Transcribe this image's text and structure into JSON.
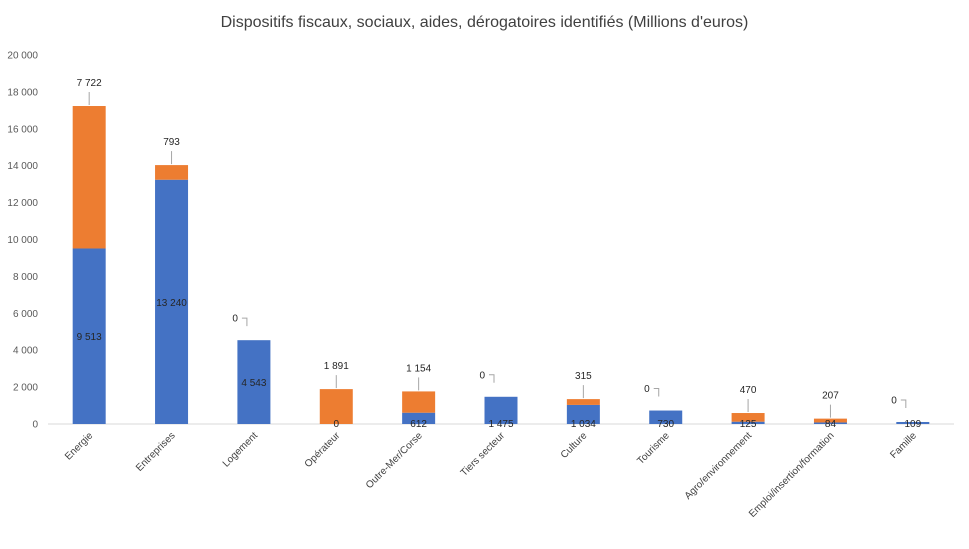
{
  "chart_data": {
    "type": "bar",
    "stacked": true,
    "title": "Dispositifs fiscaux, sociaux, aides, dérogatoires identifiés (Millions d'euros)",
    "categories": [
      "Energie",
      "Entreprises",
      "Logement",
      "Opérateur",
      "Outre-Mer/Corse",
      "Tiers secteur",
      "Culture",
      "Tourisme",
      "Agro/environnement",
      "Emploi/insertion/formation",
      "Famille"
    ],
    "series": [
      {
        "values": [
          9513,
          13240,
          4543,
          0,
          612,
          1475,
          1034,
          730,
          125,
          84,
          109
        ],
        "labels": [
          "9 513",
          "13 240",
          "4 543",
          "0",
          "612",
          "1 475",
          "1 034",
          "730",
          "125",
          "84",
          "109"
        ],
        "color": "#4472C4"
      },
      {
        "values": [
          7722,
          793,
          0,
          1891,
          1154,
          0,
          315,
          0,
          470,
          207,
          0
        ],
        "labels": [
          "7 722",
          "793",
          "0",
          "1 891",
          "1 154",
          "0",
          "315",
          "0",
          "470",
          "207",
          "0"
        ],
        "color": "#ED7D31"
      }
    ],
    "ylim": [
      0,
      20000
    ],
    "yticks": [
      0,
      2000,
      4000,
      6000,
      8000,
      10000,
      12000,
      14000,
      16000,
      18000,
      20000
    ],
    "ytick_labels": [
      "0",
      "2 000",
      "4 000",
      "6 000",
      "8 000",
      "10 000",
      "12 000",
      "14 000",
      "16 000",
      "18 000",
      "20 000"
    ],
    "grid": false,
    "legend": "none"
  }
}
